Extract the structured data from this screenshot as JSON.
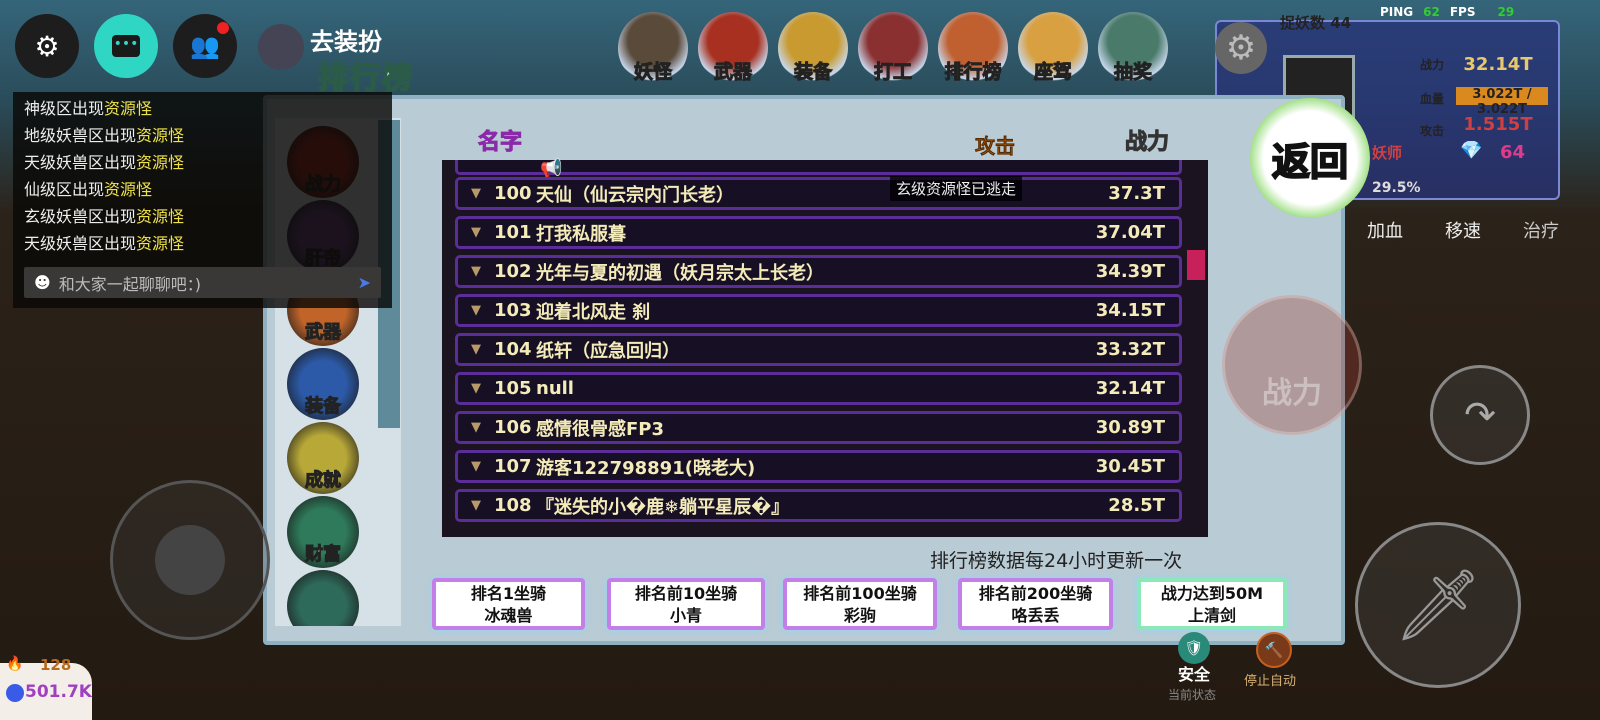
{
  "top_left": {
    "settings_icon": "gear-icon",
    "chat_icon": "chat-bubble-icon",
    "friends_icon": "friends-icon",
    "dress_up_label": "去装扮"
  },
  "chat": {
    "lines": [
      {
        "prefix": "神级区出现",
        "highlight": "资源怪"
      },
      {
        "prefix": "地级妖兽区出现",
        "highlight": "资源怪"
      },
      {
        "prefix": "天级妖兽区出现",
        "highlight": "资源怪"
      },
      {
        "prefix": "仙级区出现",
        "highlight": "资源怪"
      },
      {
        "prefix": "玄级妖兽区出现",
        "highlight": "资源怪"
      },
      {
        "prefix": "天级妖兽区出现",
        "highlight": "资源怪"
      }
    ],
    "placeholder": "和大家一起聊聊吧：)"
  },
  "top_menu": [
    {
      "label": "妖怪"
    },
    {
      "label": "武器"
    },
    {
      "label": "装备"
    },
    {
      "label": "打工"
    },
    {
      "label": "排行榜"
    },
    {
      "label": "座驾"
    },
    {
      "label": "抽奖"
    }
  ],
  "hud": {
    "ping_label": "PING",
    "ping": "62",
    "fps_label": "FPS",
    "fps": "29",
    "catch_label": "捉妖数",
    "catch_count": "44",
    "power_label": "战力",
    "power": "32.14T",
    "hp_label": "血量",
    "hp": "3.022T / 3.022T",
    "attack_label": "攻击",
    "attack": "1.515T",
    "title": "妖师",
    "gems": "64",
    "percent": "29.5%",
    "skills": [
      {
        "label": "加血"
      },
      {
        "label": "移速"
      },
      {
        "label": "治疗"
      }
    ]
  },
  "ranking": {
    "title": "排行榜",
    "back_label": "返回",
    "tabs": [
      {
        "label": "战力",
        "color": "#a8241c"
      },
      {
        "label": "肝帝",
        "color": "#6a3f8c"
      },
      {
        "label": "武器",
        "color": "#c0642a"
      },
      {
        "label": "装备",
        "color": "#2c5aa8"
      },
      {
        "label": "成就",
        "color": "#b8a838"
      },
      {
        "label": "财富",
        "color": "#2e7a5a"
      },
      {
        "label": "",
        "color": "#2e6a5a"
      }
    ],
    "headers": {
      "name": "名字",
      "attack": "攻击",
      "power": "战力"
    },
    "rows": [
      {
        "rank": "100",
        "name": "天仙（仙云宗内门长老）",
        "value": "37.3T"
      },
      {
        "rank": "101",
        "name": "打我私服暮",
        "value": "37.04T"
      },
      {
        "rank": "102",
        "name": "光年与夏的初遇（妖月宗太上长老）",
        "value": "34.39T"
      },
      {
        "rank": "103",
        "name": "迎着北风走 刹",
        "value": "34.15T"
      },
      {
        "rank": "104",
        "name": "纸轩（应急回归）",
        "value": "33.32T"
      },
      {
        "rank": "105",
        "name": "null",
        "value": "32.14T"
      },
      {
        "rank": "106",
        "name": "感情很骨感FP3",
        "value": "30.89T"
      },
      {
        "rank": "107",
        "name": "游客122798891(晓老大)",
        "value": "30.45T"
      },
      {
        "rank": "108",
        "name": "『迷失的小�鹿❄躺平星辰�』",
        "value": "28.5T"
      }
    ],
    "toast": "玄级资源怪已逃走",
    "update_note": "排行榜数据每24小时更新一次",
    "rewards": [
      {
        "line1": "排名1坐骑",
        "line2": "冰魂兽"
      },
      {
        "line1": "排名前10坐骑",
        "line2": "小青"
      },
      {
        "line1": "排名前100坐骑",
        "line2": "彩驹"
      },
      {
        "line1": "排名前200坐骑",
        "line2": "咯丢丢"
      },
      {
        "line1": "战力达到50M",
        "line2": "上清剑"
      }
    ]
  },
  "controls": {
    "big_power_label": "战力",
    "status_label": "安全",
    "status_caption": "当前状态",
    "stop_auto_label": "停止自动"
  },
  "resources": {
    "fire": "128",
    "mana": "501.7K"
  },
  "colors": {
    "accent_teal": "#2fd6c4",
    "highlight_yellow": "#f0e34a",
    "row_border": "#5a2d98",
    "attack_header": "#f08a1c"
  }
}
